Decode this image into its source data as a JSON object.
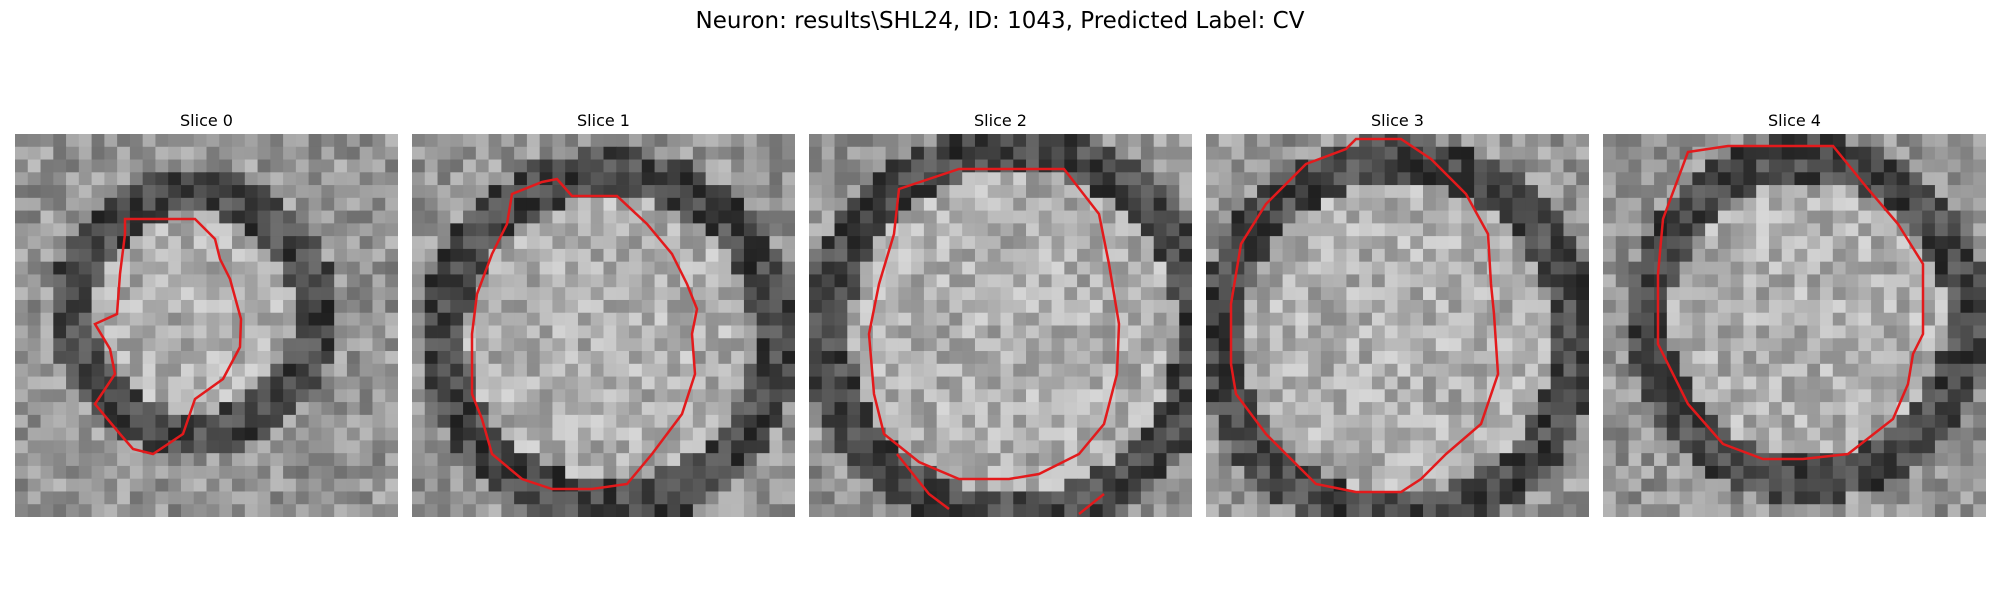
{
  "figure": {
    "title": "Neuron: results\\SHL24, ID: 1043, Predicted Label: CV"
  },
  "panels": [
    {
      "title": "Slice 0",
      "seed": 11,
      "icon": "grayscale-microscopy-image",
      "contour_color": "#e31a1c"
    },
    {
      "title": "Slice 1",
      "seed": 23,
      "icon": "grayscale-microscopy-image",
      "contour_color": "#e31a1c"
    },
    {
      "title": "Slice 2",
      "seed": 37,
      "icon": "grayscale-microscopy-image",
      "contour_color": "#e31a1c"
    },
    {
      "title": "Slice 3",
      "seed": 41,
      "icon": "grayscale-microscopy-image",
      "contour_color": "#e31a1c"
    },
    {
      "title": "Slice 4",
      "seed": 53,
      "icon": "grayscale-microscopy-image",
      "contour_color": "#e31a1c"
    }
  ]
}
